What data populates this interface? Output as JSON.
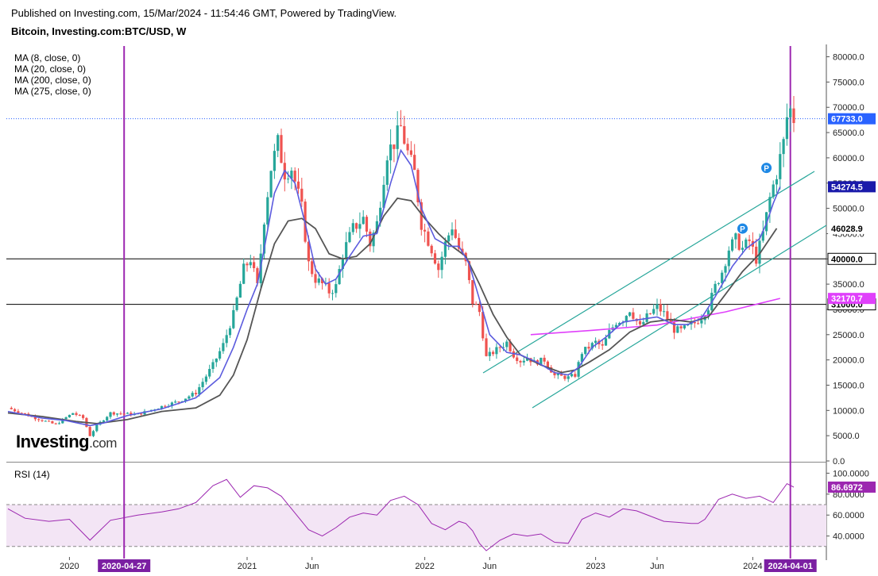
{
  "header": {
    "published": "Published on Investing.com, 15/Mar/2024 - 11:54:46 GMT, Powered by TradingView.",
    "symbol": "Bitcoin, Investing.com:BTC/USD, W"
  },
  "ma_legend": [
    "MA (8, close, 0)",
    "MA (20, close, 0)",
    "MA (200, close, 0)",
    "MA (275, close, 0)"
  ],
  "rsi_label": "RSI (14)",
  "logo": {
    "main": "Investing",
    "suffix": ".com"
  },
  "colors": {
    "up": "#26a69a",
    "down": "#ef5350",
    "ma8": "#5b5bde",
    "ma20": "#555555",
    "ma200": "#e040fb",
    "rsi": "#9c27b0",
    "vline": "#9c27b0",
    "channel": "#26a69a",
    "rsi_band": "#f3e5f5"
  },
  "chart_data": [
    {
      "type": "candlestick",
      "title": "Bitcoin, Investing.com:BTC/USD, W",
      "y_scale": "linear",
      "ylim": [
        0,
        82000
      ],
      "yticks": [
        "80000.0",
        "75000.0",
        "70000.0",
        "65000.0",
        "60000.0",
        "55000.0",
        "50000.0",
        "45000.0",
        "40000.0",
        "35000.0",
        "30000.0",
        "25000.0",
        "20000.0",
        "15000.0",
        "10000.0",
        "5000.0",
        "0.0"
      ],
      "xticks": [
        "2020",
        "2021",
        "Jun",
        "2022",
        "Jun",
        "2023",
        "Jun",
        "2024"
      ],
      "date_markers": [
        "2020-04-27",
        "2024-04-01"
      ],
      "current_price": "67733.0",
      "ma_values": [
        {
          "label": "54274.5",
          "value": 54274.5,
          "series": "MA (8, close, 0)"
        },
        {
          "label": "46028.9",
          "value": 46028.9,
          "series": "MA (20, close, 0)"
        },
        {
          "label": "32170.7",
          "value": 32170.7,
          "series": "MA (200, close, 0)"
        }
      ],
      "horizontal_levels": [
        {
          "label": "40000.0",
          "value": 40000
        },
        {
          "label": "31000.0",
          "value": 31000
        }
      ],
      "pivot_markers": [
        "P",
        "P"
      ],
      "price_path": [
        [
          0,
          10500
        ],
        [
          8,
          8500
        ],
        [
          14,
          7200
        ],
        [
          19,
          9500
        ],
        [
          22,
          8500
        ],
        [
          24,
          5000
        ],
        [
          26,
          7000
        ],
        [
          30,
          9500
        ],
        [
          38,
          9200
        ],
        [
          45,
          10800
        ],
        [
          50,
          11800
        ],
        [
          55,
          13500
        ],
        [
          60,
          19000
        ],
        [
          63,
          23000
        ],
        [
          66,
          29000
        ],
        [
          69,
          38000
        ],
        [
          71,
          40000
        ],
        [
          73,
          34500
        ],
        [
          75,
          48000
        ],
        [
          77,
          58000
        ],
        [
          79,
          63000
        ],
        [
          81,
          57000
        ],
        [
          83,
          58000
        ],
        [
          86,
          50000
        ],
        [
          88,
          39000
        ],
        [
          90,
          36000
        ],
        [
          92,
          35000
        ],
        [
          94,
          33500
        ],
        [
          96,
          34500
        ],
        [
          98,
          41000
        ],
        [
          101,
          46000
        ],
        [
          104,
          48000
        ],
        [
          106,
          43000
        ],
        [
          108,
          47000
        ],
        [
          111,
          61000
        ],
        [
          113,
          63000
        ],
        [
          115,
          66000
        ],
        [
          117,
          61000
        ],
        [
          119,
          57000
        ],
        [
          121,
          47000
        ],
        [
          124,
          42000
        ],
        [
          126,
          38000
        ],
        [
          128,
          43000
        ],
        [
          130,
          46500
        ],
        [
          132,
          42000
        ],
        [
          134,
          39000
        ],
        [
          136,
          31500
        ],
        [
          138,
          29500
        ],
        [
          140,
          20500
        ],
        [
          143,
          22000
        ],
        [
          146,
          23500
        ],
        [
          148,
          21000
        ],
        [
          150,
          19800
        ],
        [
          152,
          20500
        ],
        [
          154,
          19500
        ],
        [
          157,
          20000
        ],
        [
          160,
          16900
        ],
        [
          164,
          16500
        ],
        [
          166,
          17000
        ],
        [
          168,
          21500
        ],
        [
          172,
          23500
        ],
        [
          174,
          22500
        ],
        [
          176,
          25500
        ],
        [
          178,
          27500
        ],
        [
          180,
          28000
        ],
        [
          182,
          30000
        ],
        [
          185,
          26500
        ],
        [
          187,
          28500
        ],
        [
          190,
          30500
        ],
        [
          192,
          29200
        ],
        [
          195,
          26000
        ],
        [
          197,
          25800
        ],
        [
          201,
          27300
        ],
        [
          203,
          28500
        ],
        [
          205,
          30500
        ],
        [
          207,
          34500
        ],
        [
          209,
          37500
        ],
        [
          211,
          42000
        ],
        [
          213,
          43800
        ],
        [
          215,
          42000
        ],
        [
          217,
          43500
        ],
        [
          219,
          40000
        ],
        [
          221,
          45000
        ],
        [
          223,
          52000
        ],
        [
          225,
          57000
        ],
        [
          227,
          63000
        ],
        [
          228,
          68000
        ],
        [
          229,
          69500
        ],
        [
          230,
          67733
        ]
      ],
      "ma_paths": {
        "ma8": [
          [
            0,
            9800
          ],
          [
            10,
            8500
          ],
          [
            17,
            8000
          ],
          [
            24,
            7000
          ],
          [
            28,
            7500
          ],
          [
            35,
            9000
          ],
          [
            45,
            10300
          ],
          [
            55,
            12500
          ],
          [
            62,
            16500
          ],
          [
            66,
            22500
          ],
          [
            70,
            30000
          ],
          [
            73,
            35000
          ],
          [
            75,
            42000
          ],
          [
            78,
            53000
          ],
          [
            81,
            57500
          ],
          [
            84,
            55000
          ],
          [
            87,
            47000
          ],
          [
            90,
            38000
          ],
          [
            93,
            35000
          ],
          [
            96,
            36000
          ],
          [
            100,
            40500
          ],
          [
            104,
            44500
          ],
          [
            108,
            45000
          ],
          [
            112,
            55000
          ],
          [
            115,
            61500
          ],
          [
            118,
            58500
          ],
          [
            121,
            50000
          ],
          [
            125,
            44000
          ],
          [
            129,
            42500
          ],
          [
            132,
            42500
          ],
          [
            135,
            39000
          ],
          [
            138,
            32000
          ],
          [
            141,
            25000
          ],
          [
            146,
            21500
          ],
          [
            150,
            21000
          ],
          [
            155,
            19500
          ],
          [
            160,
            17500
          ],
          [
            164,
            17000
          ],
          [
            167,
            18500
          ],
          [
            171,
            22500
          ],
          [
            175,
            24500
          ],
          [
            180,
            27500
          ],
          [
            185,
            28000
          ],
          [
            190,
            28500
          ],
          [
            195,
            27000
          ],
          [
            199,
            27000
          ],
          [
            203,
            28300
          ],
          [
            207,
            32500
          ],
          [
            212,
            38500
          ],
          [
            216,
            42000
          ],
          [
            220,
            44000
          ],
          [
            222,
            47000
          ],
          [
            224,
            51000
          ],
          [
            226,
            54274.5
          ]
        ],
        "ma20": [
          [
            0,
            9500
          ],
          [
            10,
            8800
          ],
          [
            20,
            7800
          ],
          [
            26,
            7400
          ],
          [
            35,
            8200
          ],
          [
            45,
            9800
          ],
          [
            55,
            10500
          ],
          [
            62,
            13000
          ],
          [
            66,
            17000
          ],
          [
            70,
            24000
          ],
          [
            74,
            34000
          ],
          [
            78,
            43000
          ],
          [
            82,
            47500
          ],
          [
            86,
            48000
          ],
          [
            90,
            46000
          ],
          [
            94,
            41000
          ],
          [
            98,
            40000
          ],
          [
            102,
            40500
          ],
          [
            106,
            43000
          ],
          [
            110,
            48500
          ],
          [
            114,
            52000
          ],
          [
            118,
            51500
          ],
          [
            122,
            48000
          ],
          [
            126,
            45000
          ],
          [
            130,
            42500
          ],
          [
            134,
            40500
          ],
          [
            138,
            35000
          ],
          [
            142,
            29000
          ],
          [
            146,
            24500
          ],
          [
            150,
            21000
          ],
          [
            156,
            19000
          ],
          [
            162,
            17500
          ],
          [
            166,
            18000
          ],
          [
            170,
            19500
          ],
          [
            176,
            22000
          ],
          [
            182,
            25500
          ],
          [
            188,
            27500
          ],
          [
            194,
            28000
          ],
          [
            200,
            27500
          ],
          [
            205,
            28500
          ],
          [
            210,
            33000
          ],
          [
            215,
            37500
          ],
          [
            220,
            41000
          ],
          [
            225,
            46028.9
          ]
        ],
        "ma200": [
          [
            153,
            25000
          ],
          [
            170,
            25800
          ],
          [
            190,
            26900
          ],
          [
            210,
            29500
          ],
          [
            226,
            32170.7
          ]
        ]
      }
    },
    {
      "type": "line",
      "title": "RSI (14)",
      "ylim": [
        20,
        100
      ],
      "yticks": [
        "100.0000",
        "80.0000",
        "60.0000",
        "40.0000"
      ],
      "bands": [
        30,
        70
      ],
      "current_value": "86.6972",
      "rsi_path": [
        [
          0,
          66
        ],
        [
          5,
          57
        ],
        [
          12,
          54
        ],
        [
          18,
          56
        ],
        [
          24,
          36
        ],
        [
          30,
          55
        ],
        [
          38,
          60
        ],
        [
          45,
          63
        ],
        [
          50,
          66
        ],
        [
          55,
          72
        ],
        [
          60,
          88
        ],
        [
          64,
          94
        ],
        [
          68,
          77
        ],
        [
          72,
          88
        ],
        [
          76,
          86
        ],
        [
          80,
          78
        ],
        [
          84,
          62
        ],
        [
          88,
          46
        ],
        [
          92,
          40
        ],
        [
          96,
          48
        ],
        [
          100,
          58
        ],
        [
          104,
          62
        ],
        [
          108,
          60
        ],
        [
          112,
          74
        ],
        [
          116,
          78
        ],
        [
          120,
          70
        ],
        [
          124,
          52
        ],
        [
          128,
          46
        ],
        [
          132,
          54
        ],
        [
          134,
          52
        ],
        [
          136,
          45
        ],
        [
          138,
          33
        ],
        [
          140,
          26
        ],
        [
          144,
          36
        ],
        [
          148,
          42
        ],
        [
          152,
          40
        ],
        [
          156,
          42
        ],
        [
          160,
          34
        ],
        [
          164,
          33
        ],
        [
          168,
          56
        ],
        [
          172,
          62
        ],
        [
          176,
          58
        ],
        [
          180,
          66
        ],
        [
          184,
          64
        ],
        [
          188,
          59
        ],
        [
          192,
          54
        ],
        [
          196,
          53
        ],
        [
          200,
          52
        ],
        [
          202,
          52
        ],
        [
          204,
          56
        ],
        [
          208,
          75
        ],
        [
          212,
          80
        ],
        [
          216,
          76
        ],
        [
          220,
          78
        ],
        [
          222,
          75
        ],
        [
          224,
          72
        ],
        [
          226,
          81
        ],
        [
          228,
          90
        ],
        [
          230,
          86.6972
        ]
      ]
    }
  ]
}
